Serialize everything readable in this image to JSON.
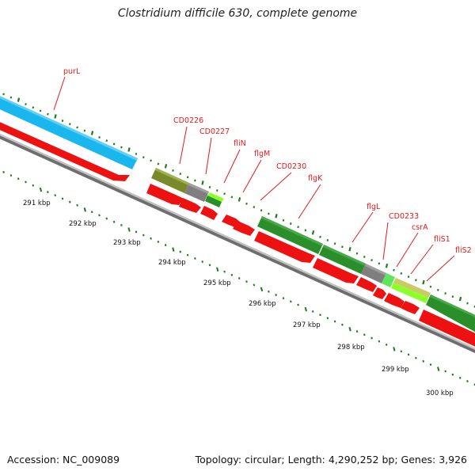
{
  "title": "Clostridium difficile 630, complete genome",
  "footer": {
    "accession": "Accession: NC_009089",
    "topology": "Topology: circular; Length: 4,290,252 bp; Genes: 3,926"
  },
  "colors": {
    "cds_red": "#ee1111",
    "light_blue": "#1ab6ee",
    "dark_green": "#2a8f2a",
    "olive": "#7a8a2a",
    "gray": "#808080",
    "light_green": "#7fe62a",
    "pale_yellow_green": "#c2cc6a",
    "backbone": "#8f8f8f",
    "tick_green": "#1d7a1d",
    "label_red": "#e41a1c"
  },
  "scale": {
    "ticks": [
      "291 kbp",
      "292 kbp",
      "293 kbp",
      "294 kbp",
      "295 kbp",
      "296 kbp",
      "297 kbp",
      "298 kbp",
      "299 kbp",
      "300 kbp"
    ]
  },
  "gene_labels": [
    "purL",
    "CD0226",
    "CD0227",
    "fliN",
    "flgM",
    "CD0230",
    "flgK",
    "flgL",
    "CD0233",
    "csrA",
    "fliS1",
    "fliS2"
  ]
}
